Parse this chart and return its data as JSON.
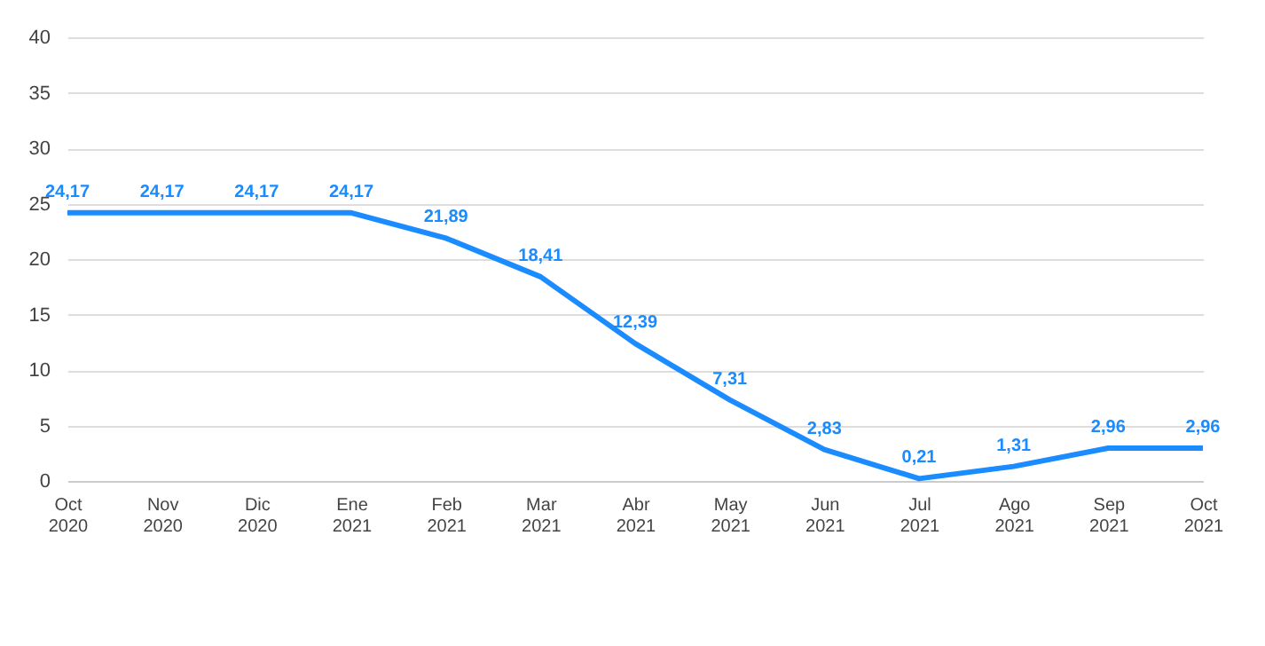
{
  "chart_data": {
    "type": "line",
    "categories": [
      "Oct 2020",
      "Nov 2020",
      "Dic 2020",
      "Ene 2021",
      "Feb 2021",
      "Mar 2021",
      "Abr 2021",
      "May 2021",
      "Jun 2021",
      "Jul 2021",
      "Ago 2021",
      "Sep 2021",
      "Oct 2021"
    ],
    "series": [
      {
        "color": "#1a8cff",
        "values": [
          24.17,
          24.17,
          24.17,
          24.17,
          21.89,
          18.41,
          12.39,
          7.31,
          2.83,
          0.21,
          1.31,
          2.96,
          2.96
        ],
        "value_labels": [
          "24,17",
          "24,17",
          "24,17",
          "24,17",
          "21,89",
          "18,41",
          "12,39",
          "7,31",
          "2,83",
          "0,21",
          "1,31",
          "2,96",
          "2,96"
        ]
      }
    ],
    "ylim": [
      0,
      40
    ],
    "yticks": [
      0,
      5,
      10,
      15,
      20,
      25,
      30,
      35,
      40
    ],
    "grid": "y",
    "legend": false,
    "marker": "none",
    "line_style": "solid"
  }
}
